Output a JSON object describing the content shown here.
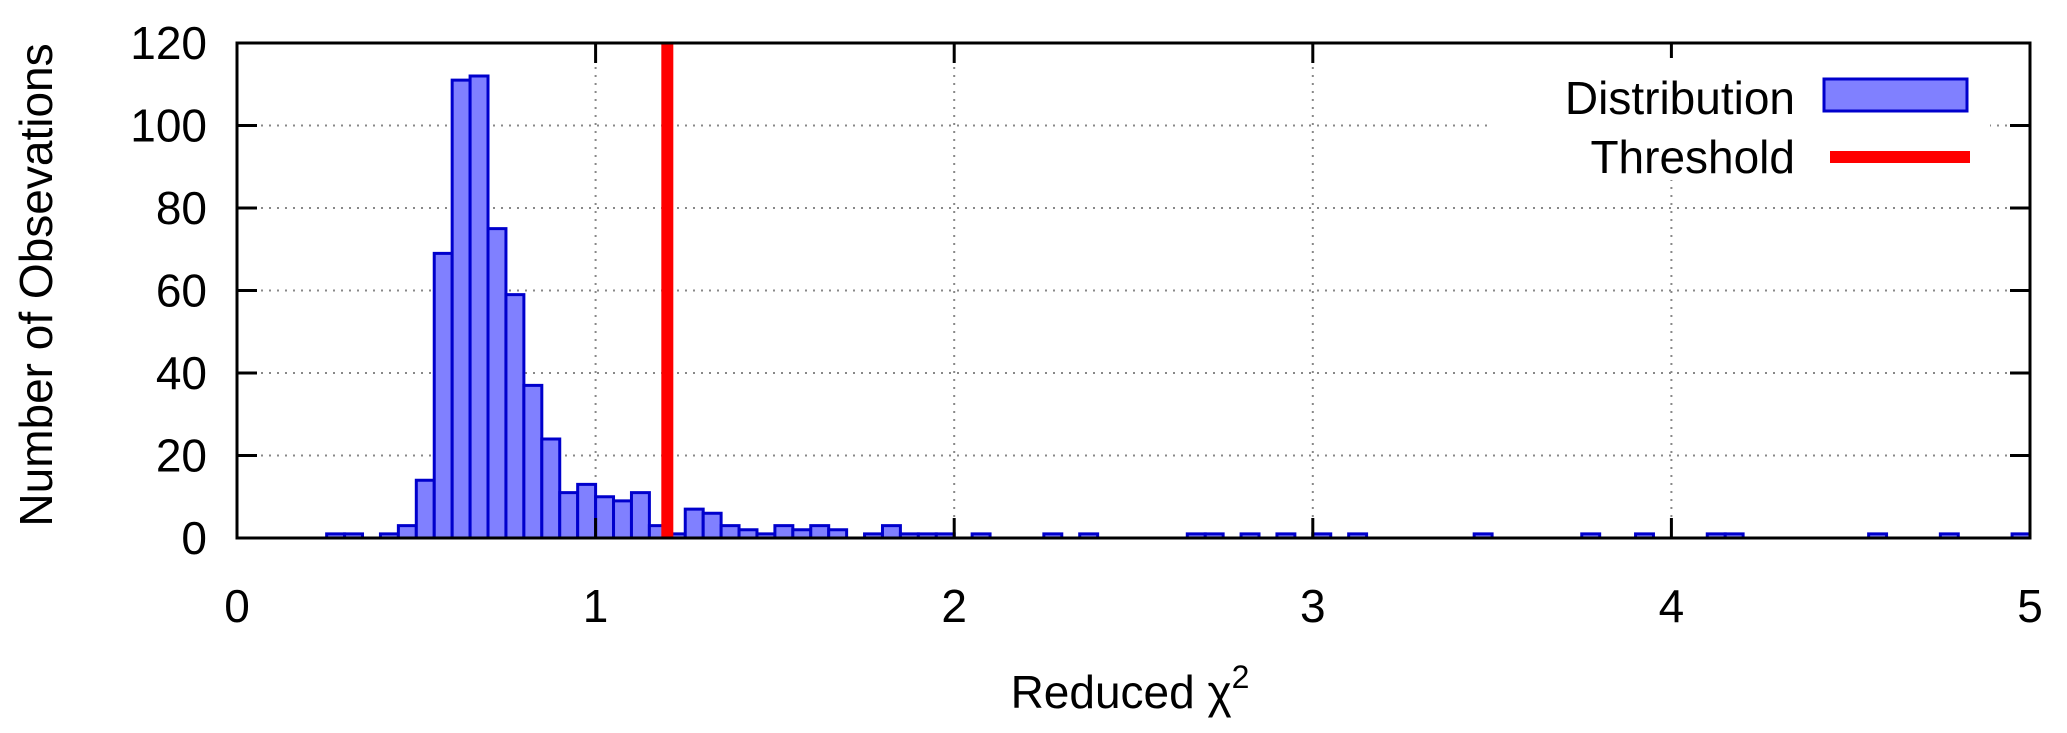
{
  "chart_data": {
    "type": "bar",
    "xlabel": "Reduced χ",
    "xlabel_superscript": "2",
    "ylabel": "Number of Obsevations",
    "xlim": [
      0,
      5
    ],
    "ylim": [
      0,
      120
    ],
    "xticks": [
      "0",
      "1",
      "2",
      "3",
      "4",
      "5"
    ],
    "yticks": [
      "0",
      "20",
      "40",
      "60",
      "80",
      "100",
      "120"
    ],
    "grid": true,
    "legend_position": "top-right",
    "bin_width": 0.05,
    "series": [
      {
        "name": "Distribution",
        "kind": "histogram",
        "color": "#8080ff",
        "edge_color": "#0000cc",
        "bins": [
          {
            "x": 0.25,
            "y": 1
          },
          {
            "x": 0.3,
            "y": 1
          },
          {
            "x": 0.4,
            "y": 1
          },
          {
            "x": 0.45,
            "y": 3
          },
          {
            "x": 0.5,
            "y": 14
          },
          {
            "x": 0.55,
            "y": 69
          },
          {
            "x": 0.6,
            "y": 111
          },
          {
            "x": 0.65,
            "y": 112
          },
          {
            "x": 0.7,
            "y": 75
          },
          {
            "x": 0.75,
            "y": 59
          },
          {
            "x": 0.8,
            "y": 37
          },
          {
            "x": 0.85,
            "y": 24
          },
          {
            "x": 0.9,
            "y": 11
          },
          {
            "x": 0.95,
            "y": 13
          },
          {
            "x": 1.0,
            "y": 10
          },
          {
            "x": 1.05,
            "y": 9
          },
          {
            "x": 1.1,
            "y": 11
          },
          {
            "x": 1.15,
            "y": 3
          },
          {
            "x": 1.2,
            "y": 1
          },
          {
            "x": 1.25,
            "y": 7
          },
          {
            "x": 1.3,
            "y": 6
          },
          {
            "x": 1.35,
            "y": 3
          },
          {
            "x": 1.4,
            "y": 2
          },
          {
            "x": 1.45,
            "y": 1
          },
          {
            "x": 1.5,
            "y": 3
          },
          {
            "x": 1.55,
            "y": 2
          },
          {
            "x": 1.6,
            "y": 3
          },
          {
            "x": 1.65,
            "y": 2
          },
          {
            "x": 1.75,
            "y": 1
          },
          {
            "x": 1.8,
            "y": 3
          },
          {
            "x": 1.85,
            "y": 1
          },
          {
            "x": 1.9,
            "y": 1
          },
          {
            "x": 1.95,
            "y": 1
          },
          {
            "x": 2.05,
            "y": 1
          },
          {
            "x": 2.25,
            "y": 1
          },
          {
            "x": 2.35,
            "y": 1
          },
          {
            "x": 2.65,
            "y": 1
          },
          {
            "x": 2.7,
            "y": 1
          },
          {
            "x": 2.8,
            "y": 1
          },
          {
            "x": 2.9,
            "y": 1
          },
          {
            "x": 3.0,
            "y": 1
          },
          {
            "x": 3.1,
            "y": 1
          },
          {
            "x": 3.45,
            "y": 1
          },
          {
            "x": 3.75,
            "y": 1
          },
          {
            "x": 3.9,
            "y": 1
          },
          {
            "x": 4.1,
            "y": 1
          },
          {
            "x": 4.15,
            "y": 1
          },
          {
            "x": 4.55,
            "y": 1
          },
          {
            "x": 4.75,
            "y": 1
          },
          {
            "x": 4.95,
            "y": 1
          }
        ]
      },
      {
        "name": "Threshold",
        "kind": "vline",
        "color": "#ff0000",
        "x": 1.2
      }
    ]
  }
}
